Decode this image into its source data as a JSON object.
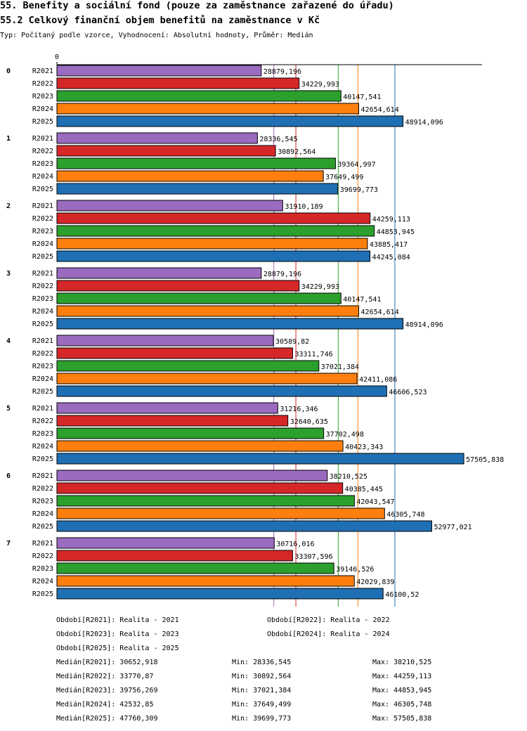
{
  "header": {
    "title": "55. Benefity a sociální fond (pouze za zaměstnance zařazené do úřadu)",
    "subtitle": "55.2 Celkový finanční objem benefitů na zaměstnance v Kč",
    "description": "Typ: Počítaný podle vzorce, Vyhodnocení: Absolutní hodnoty, Průměr: Medián"
  },
  "chart_data": {
    "type": "bar",
    "orientation": "horizontal",
    "x_axis_label": "0",
    "xlim": [
      0,
      60000
    ],
    "groups": [
      "0",
      "1",
      "2",
      "3",
      "4",
      "5",
      "6",
      "7"
    ],
    "series": [
      {
        "name": "R2021",
        "color": "#9b6bbf",
        "values": [
          28879.196,
          28336.545,
          31910.189,
          28879.196,
          30589.82,
          31216.346,
          38210.525,
          30716.016
        ],
        "labels": [
          "28879,196",
          "28336,545",
          "31910,189",
          "28879,196",
          "30589,82",
          "31216,346",
          "38210,525",
          "30716,016"
        ]
      },
      {
        "name": "R2022",
        "color": "#d62728",
        "values": [
          34229.993,
          30892.564,
          44259.113,
          34229.993,
          33311.746,
          32640.635,
          40385.445,
          33307.596
        ],
        "labels": [
          "34229,993",
          "30892,564",
          "44259,113",
          "34229,993",
          "33311,746",
          "32640,635",
          "40385,445",
          "33307,596"
        ]
      },
      {
        "name": "R2023",
        "color": "#2ca02c",
        "values": [
          40147.541,
          39364.997,
          44853.945,
          40147.541,
          37021.384,
          37702.498,
          42043.547,
          39146.526
        ],
        "labels": [
          "40147,541",
          "39364,997",
          "44853,945",
          "40147,541",
          "37021,384",
          "37702,498",
          "42043,547",
          "39146,526"
        ]
      },
      {
        "name": "R2024",
        "color": "#ff7f0e",
        "values": [
          42654.614,
          37649.499,
          43885.417,
          42654.614,
          42411.086,
          40423.343,
          46305.748,
          42029.839
        ],
        "labels": [
          "42654,614",
          "37649,499",
          "43885,417",
          "42654,614",
          "42411,086",
          "40423,343",
          "46305,748",
          "42029,839"
        ]
      },
      {
        "name": "R2025",
        "color": "#1f6fb4",
        "values": [
          48914.096,
          39699.773,
          44245.084,
          48914.096,
          46606.523,
          57505.838,
          52977.021,
          46100.52
        ],
        "labels": [
          "48914,096",
          "39699,773",
          "44245,084",
          "48914,096",
          "46606,523",
          "57505,838",
          "52977,021",
          "46100,52"
        ]
      }
    ],
    "median_lines": [
      {
        "series": "R2021",
        "value": 30652.918
      },
      {
        "series": "R2022",
        "value": 33770.87
      },
      {
        "series": "R2023",
        "value": 39756.269
      },
      {
        "series": "R2024",
        "value": 42532.85
      },
      {
        "series": "R2025",
        "value": 47760.309
      }
    ]
  },
  "legend": {
    "periods": [
      "Období[R2021]: Realita - 2021",
      "Období[R2022]: Realita - 2022",
      "Období[R2023]: Realita - 2023",
      "Období[R2024]: Realita - 2024",
      "Období[R2025]: Realita - 2025"
    ],
    "stats": [
      {
        "median": "Medián[R2021]: 30652,918",
        "min": "Min: 28336,545",
        "max": "Max: 38210,525"
      },
      {
        "median": "Medián[R2022]: 33770,87",
        "min": "Min: 30892,564",
        "max": "Max: 44259,113"
      },
      {
        "median": "Medián[R2023]: 39756,269",
        "min": "Min: 37021,384",
        "max": "Max: 44853,945"
      },
      {
        "median": "Medián[R2024]: 42532,85",
        "min": "Min: 37649,499",
        "max": "Max: 46305,748"
      },
      {
        "median": "Medián[R2025]: 47760,309",
        "min": "Min: 39699,773",
        "max": "Max: 57505,838"
      }
    ]
  }
}
